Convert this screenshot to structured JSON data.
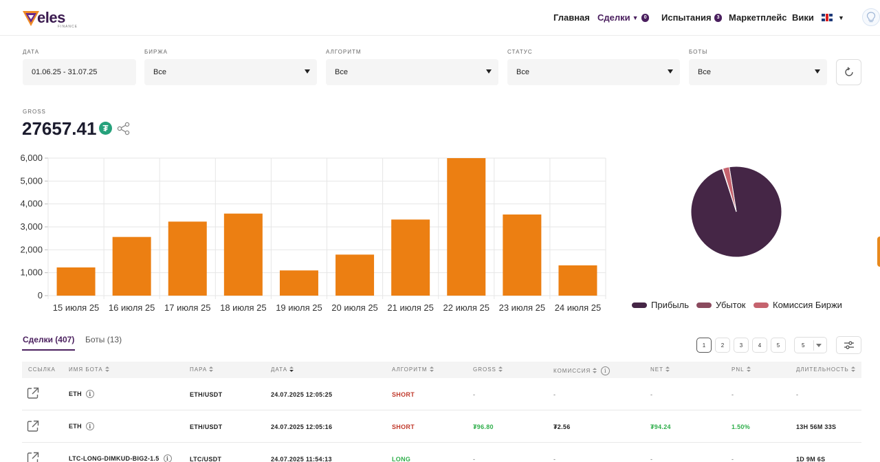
{
  "header": {
    "logo_text": "eles",
    "logo_sub": "FINANCE",
    "nav": {
      "home": "Главная",
      "deals": "Сделки",
      "deals_badge": "0",
      "tests": "Испытания",
      "tests_badge": "3",
      "marketplace": "Маркетплейс",
      "wiki": "Вики"
    }
  },
  "filters": {
    "date": {
      "label": "ДАТА",
      "value": "01.06.25 - 31.07.25"
    },
    "exchange": {
      "label": "БИРЖА",
      "value": "Все"
    },
    "algorithm": {
      "label": "АЛГОРИТМ",
      "value": "Все"
    },
    "status": {
      "label": "СТАТУС",
      "value": "Все"
    },
    "bots": {
      "label": "БОТЫ",
      "value": "Все"
    }
  },
  "gross": {
    "label": "GROSS",
    "value": "27657.41",
    "currency_symbol": "₮"
  },
  "chart_data": [
    {
      "type": "bar",
      "categories": [
        "15 июля 25",
        "16 июля 25",
        "17 июля 25",
        "18 июля 25",
        "19 июля 25",
        "20 июля 25",
        "21 июля 25",
        "22 июля 25",
        "23 июля 25",
        "24 июля 25"
      ],
      "values": [
        1230,
        2560,
        3230,
        3580,
        1100,
        1790,
        3320,
        6000,
        3540,
        1320
      ],
      "ylim": [
        0,
        6000
      ],
      "yticks": [
        "0",
        "1,000",
        "2,000",
        "3,000",
        "4,000",
        "5,000",
        "6,000"
      ],
      "color": "#ec7f12",
      "grid": true
    },
    {
      "type": "pie",
      "series": [
        {
          "name": "Прибыль",
          "value": 97.5,
          "color": "#452646"
        },
        {
          "name": "Убыток",
          "value": 0.2,
          "color": "#8a4a5e"
        },
        {
          "name": "Комиссия Биржи",
          "value": 2.3,
          "color": "#c5636e"
        }
      ],
      "legend": "bottom"
    }
  ],
  "tabs": {
    "deals": "Сделки (407)",
    "bots": "Боты (13)"
  },
  "pagination": {
    "pages": [
      "1",
      "2",
      "3",
      "4",
      "5"
    ],
    "per_page": "5"
  },
  "table": {
    "headers": {
      "link": "ССЫЛКА",
      "bot": "ИМЯ БОТА",
      "pair": "ПАРА",
      "date": "ДАТА",
      "algo": "АЛГОРИТМ",
      "gross": "GROSS",
      "fee": "КОМИССИЯ",
      "net": "NET",
      "pnl": "PNL",
      "duration": "ДЛИТЕЛЬНОСТЬ"
    },
    "rows": [
      {
        "bot": "ETH",
        "pair": "ETH/USDT",
        "date": "24.07.2025 12:05:25",
        "algo": "SHORT",
        "gross": "-",
        "fee": "-",
        "net": "-",
        "pnl": "-",
        "duration": "-"
      },
      {
        "bot": "ETH",
        "pair": "ETH/USDT",
        "date": "24.07.2025 12:05:16",
        "algo": "SHORT",
        "gross": "₮96.80",
        "fee": "₮2.56",
        "net": "₮94.24",
        "pnl": "1.50%",
        "duration": "13H 56M 33S"
      },
      {
        "bot": "LTC-LONG-DIMKUD-BIG2-1.5",
        "pair": "LTC/USDT",
        "date": "24.07.2025 11:54:13",
        "algo": "LONG",
        "gross": "-",
        "fee": "-",
        "net": "-",
        "pnl": "-",
        "duration": "1D 9M 6S"
      }
    ]
  },
  "info_glyph": "i"
}
